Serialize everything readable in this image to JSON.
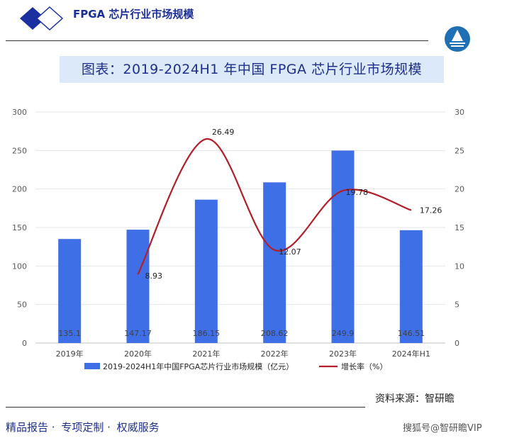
{
  "header": {
    "doc_title": "FPGA 芯片行业市场规模"
  },
  "banner": {
    "title": "图表：2019-2024H1 年中国 FPGA 芯片行业市场规模"
  },
  "chart_data": {
    "type": "bar",
    "categories": [
      "2019年",
      "2020年",
      "2021年",
      "2022年",
      "2023年",
      "2024年H1"
    ],
    "series": [
      {
        "name": "2019-2024H1年中国FPGA芯片行业市场规模（亿元）",
        "type": "bar",
        "axis": "left",
        "values": [
          135.1,
          147.17,
          186.15,
          208.62,
          249.9,
          146.51
        ],
        "labels": [
          "135.1",
          "147.17",
          "186.15",
          "208.62",
          "249.9",
          "146.51"
        ]
      },
      {
        "name": "增长率（%）",
        "type": "line",
        "axis": "right",
        "values": [
          null,
          8.93,
          26.49,
          12.07,
          19.78,
          17.26
        ],
        "labels": [
          "",
          "8.93",
          "26.49",
          "12.07",
          "19.78",
          "17.26"
        ]
      }
    ],
    "y_left": {
      "ylim": [
        0,
        300
      ],
      "ticks": [
        "0",
        "50",
        "100",
        "150",
        "200",
        "250",
        "300"
      ]
    },
    "y_right": {
      "ylim": [
        0,
        30
      ],
      "ticks": [
        "0",
        "5",
        "10",
        "15",
        "20",
        "25",
        "30"
      ]
    },
    "grid": true,
    "legend_position": "bottom",
    "colors": {
      "bar": "#3f6fe6",
      "line": "#b21e2a"
    }
  },
  "source": "资料来源：智研瞻",
  "footer": {
    "left_items": [
      "精品报告 ·",
      "专项定制 ·",
      "权威服务"
    ],
    "watermark": "搜狐号@智研瞻VIP"
  }
}
